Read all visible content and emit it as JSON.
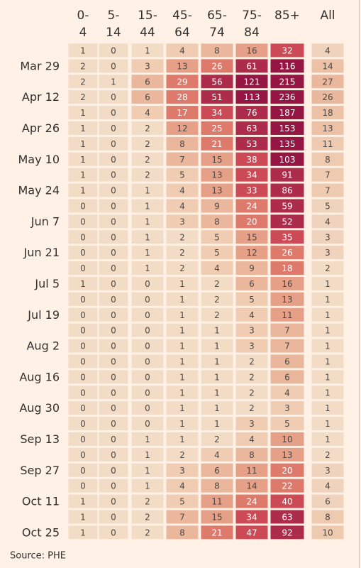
{
  "table": {
    "columns": [
      [
        "0-",
        "4"
      ],
      [
        "5-",
        "14"
      ],
      [
        "15-",
        "44"
      ],
      [
        "45-",
        "64"
      ],
      [
        "65-",
        "74"
      ],
      [
        "75-",
        "84"
      ],
      [
        "85+"
      ],
      [
        "All"
      ]
    ],
    "rows": [
      {
        "label": null,
        "values": [
          1,
          0,
          1,
          4,
          8,
          16,
          32,
          4
        ]
      },
      {
        "label": "Mar 29",
        "values": [
          2,
          0,
          3,
          13,
          26,
          61,
          116,
          14
        ]
      },
      {
        "label": null,
        "values": [
          2,
          1,
          6,
          29,
          56,
          121,
          215,
          27
        ]
      },
      {
        "label": "Apr 12",
        "values": [
          2,
          0,
          6,
          28,
          51,
          113,
          236,
          26
        ]
      },
      {
        "label": null,
        "values": [
          1,
          0,
          4,
          17,
          34,
          76,
          187,
          18
        ]
      },
      {
        "label": "Apr 26",
        "values": [
          1,
          0,
          2,
          12,
          25,
          63,
          153,
          13
        ]
      },
      {
        "label": null,
        "values": [
          1,
          0,
          2,
          8,
          21,
          53,
          135,
          11
        ]
      },
      {
        "label": "May 10",
        "values": [
          1,
          0,
          2,
          7,
          15,
          38,
          103,
          8
        ]
      },
      {
        "label": null,
        "values": [
          1,
          0,
          2,
          5,
          13,
          34,
          91,
          7
        ]
      },
      {
        "label": "May 24",
        "values": [
          1,
          0,
          1,
          4,
          13,
          33,
          86,
          7
        ]
      },
      {
        "label": null,
        "values": [
          0,
          0,
          1,
          4,
          9,
          24,
          59,
          5
        ]
      },
      {
        "label": "Jun 7",
        "values": [
          0,
          0,
          1,
          3,
          8,
          20,
          52,
          4
        ]
      },
      {
        "label": null,
        "values": [
          0,
          0,
          1,
          2,
          5,
          15,
          35,
          3
        ]
      },
      {
        "label": "Jun 21",
        "values": [
          0,
          0,
          1,
          2,
          5,
          12,
          26,
          3
        ]
      },
      {
        "label": null,
        "values": [
          0,
          0,
          1,
          2,
          4,
          9,
          18,
          2
        ]
      },
      {
        "label": "Jul 5",
        "values": [
          1,
          0,
          0,
          1,
          2,
          6,
          16,
          1
        ]
      },
      {
        "label": null,
        "values": [
          0,
          0,
          0,
          1,
          2,
          5,
          13,
          1
        ]
      },
      {
        "label": "Jul 19",
        "values": [
          0,
          0,
          0,
          1,
          2,
          4,
          11,
          1
        ]
      },
      {
        "label": null,
        "values": [
          0,
          0,
          0,
          1,
          1,
          3,
          7,
          1
        ]
      },
      {
        "label": "Aug 2",
        "values": [
          0,
          0,
          0,
          1,
          1,
          3,
          7,
          1
        ]
      },
      {
        "label": null,
        "values": [
          0,
          0,
          0,
          1,
          1,
          2,
          6,
          1
        ]
      },
      {
        "label": "Aug 16",
        "values": [
          0,
          0,
          0,
          1,
          1,
          2,
          6,
          1
        ]
      },
      {
        "label": null,
        "values": [
          0,
          0,
          0,
          1,
          1,
          2,
          4,
          1
        ]
      },
      {
        "label": "Aug 30",
        "values": [
          0,
          0,
          0,
          1,
          1,
          2,
          3,
          1
        ]
      },
      {
        "label": null,
        "values": [
          0,
          0,
          0,
          1,
          1,
          3,
          5,
          1
        ]
      },
      {
        "label": "Sep 13",
        "values": [
          0,
          0,
          1,
          1,
          2,
          4,
          10,
          1
        ]
      },
      {
        "label": null,
        "values": [
          0,
          0,
          1,
          2,
          4,
          8,
          13,
          2
        ]
      },
      {
        "label": "Sep 27",
        "values": [
          0,
          0,
          1,
          3,
          6,
          11,
          20,
          3
        ]
      },
      {
        "label": null,
        "values": [
          0,
          0,
          1,
          4,
          8,
          14,
          22,
          4
        ]
      },
      {
        "label": "Oct 11",
        "values": [
          1,
          0,
          2,
          5,
          11,
          24,
          40,
          6
        ]
      },
      {
        "label": null,
        "values": [
          1,
          0,
          2,
          7,
          15,
          34,
          63,
          8
        ]
      },
      {
        "label": "Oct 25",
        "values": [
          1,
          0,
          2,
          8,
          21,
          47,
          92,
          10
        ]
      }
    ],
    "color_scale": [
      {
        "min": 0,
        "color": "#f3dcc5",
        "text_color": "#4d4845"
      },
      {
        "min": 3,
        "color": "#efccb2",
        "text_color": "#4d4845"
      },
      {
        "min": 6,
        "color": "#eab79c",
        "text_color": "#4d4845"
      },
      {
        "min": 10,
        "color": "#e5a087",
        "text_color": "#4d4845"
      },
      {
        "min": 17,
        "color": "#dd7a6c",
        "text_color": "#ffffff"
      },
      {
        "min": 30,
        "color": "#cb4a55",
        "text_color": "#ffffff"
      },
      {
        "min": 50,
        "color": "#ae2c4b",
        "text_color": "#ffffff"
      },
      {
        "min": 100,
        "color": "#951643",
        "text_color": "#ffffff"
      }
    ],
    "total_color_scale": [
      {
        "min": 0,
        "color": "#f3dcc5",
        "text_color": "#4d4845"
      },
      {
        "min": 3,
        "color": "#f0d3bc",
        "text_color": "#4d4845"
      },
      {
        "min": 7,
        "color": "#eecab0",
        "text_color": "#4d4845"
      },
      {
        "min": 12,
        "color": "#ecc1a6",
        "text_color": "#4d4845"
      },
      {
        "min": 20,
        "color": "#eab89d",
        "text_color": "#4d4845"
      }
    ]
  },
  "source": "Source: PHE"
}
